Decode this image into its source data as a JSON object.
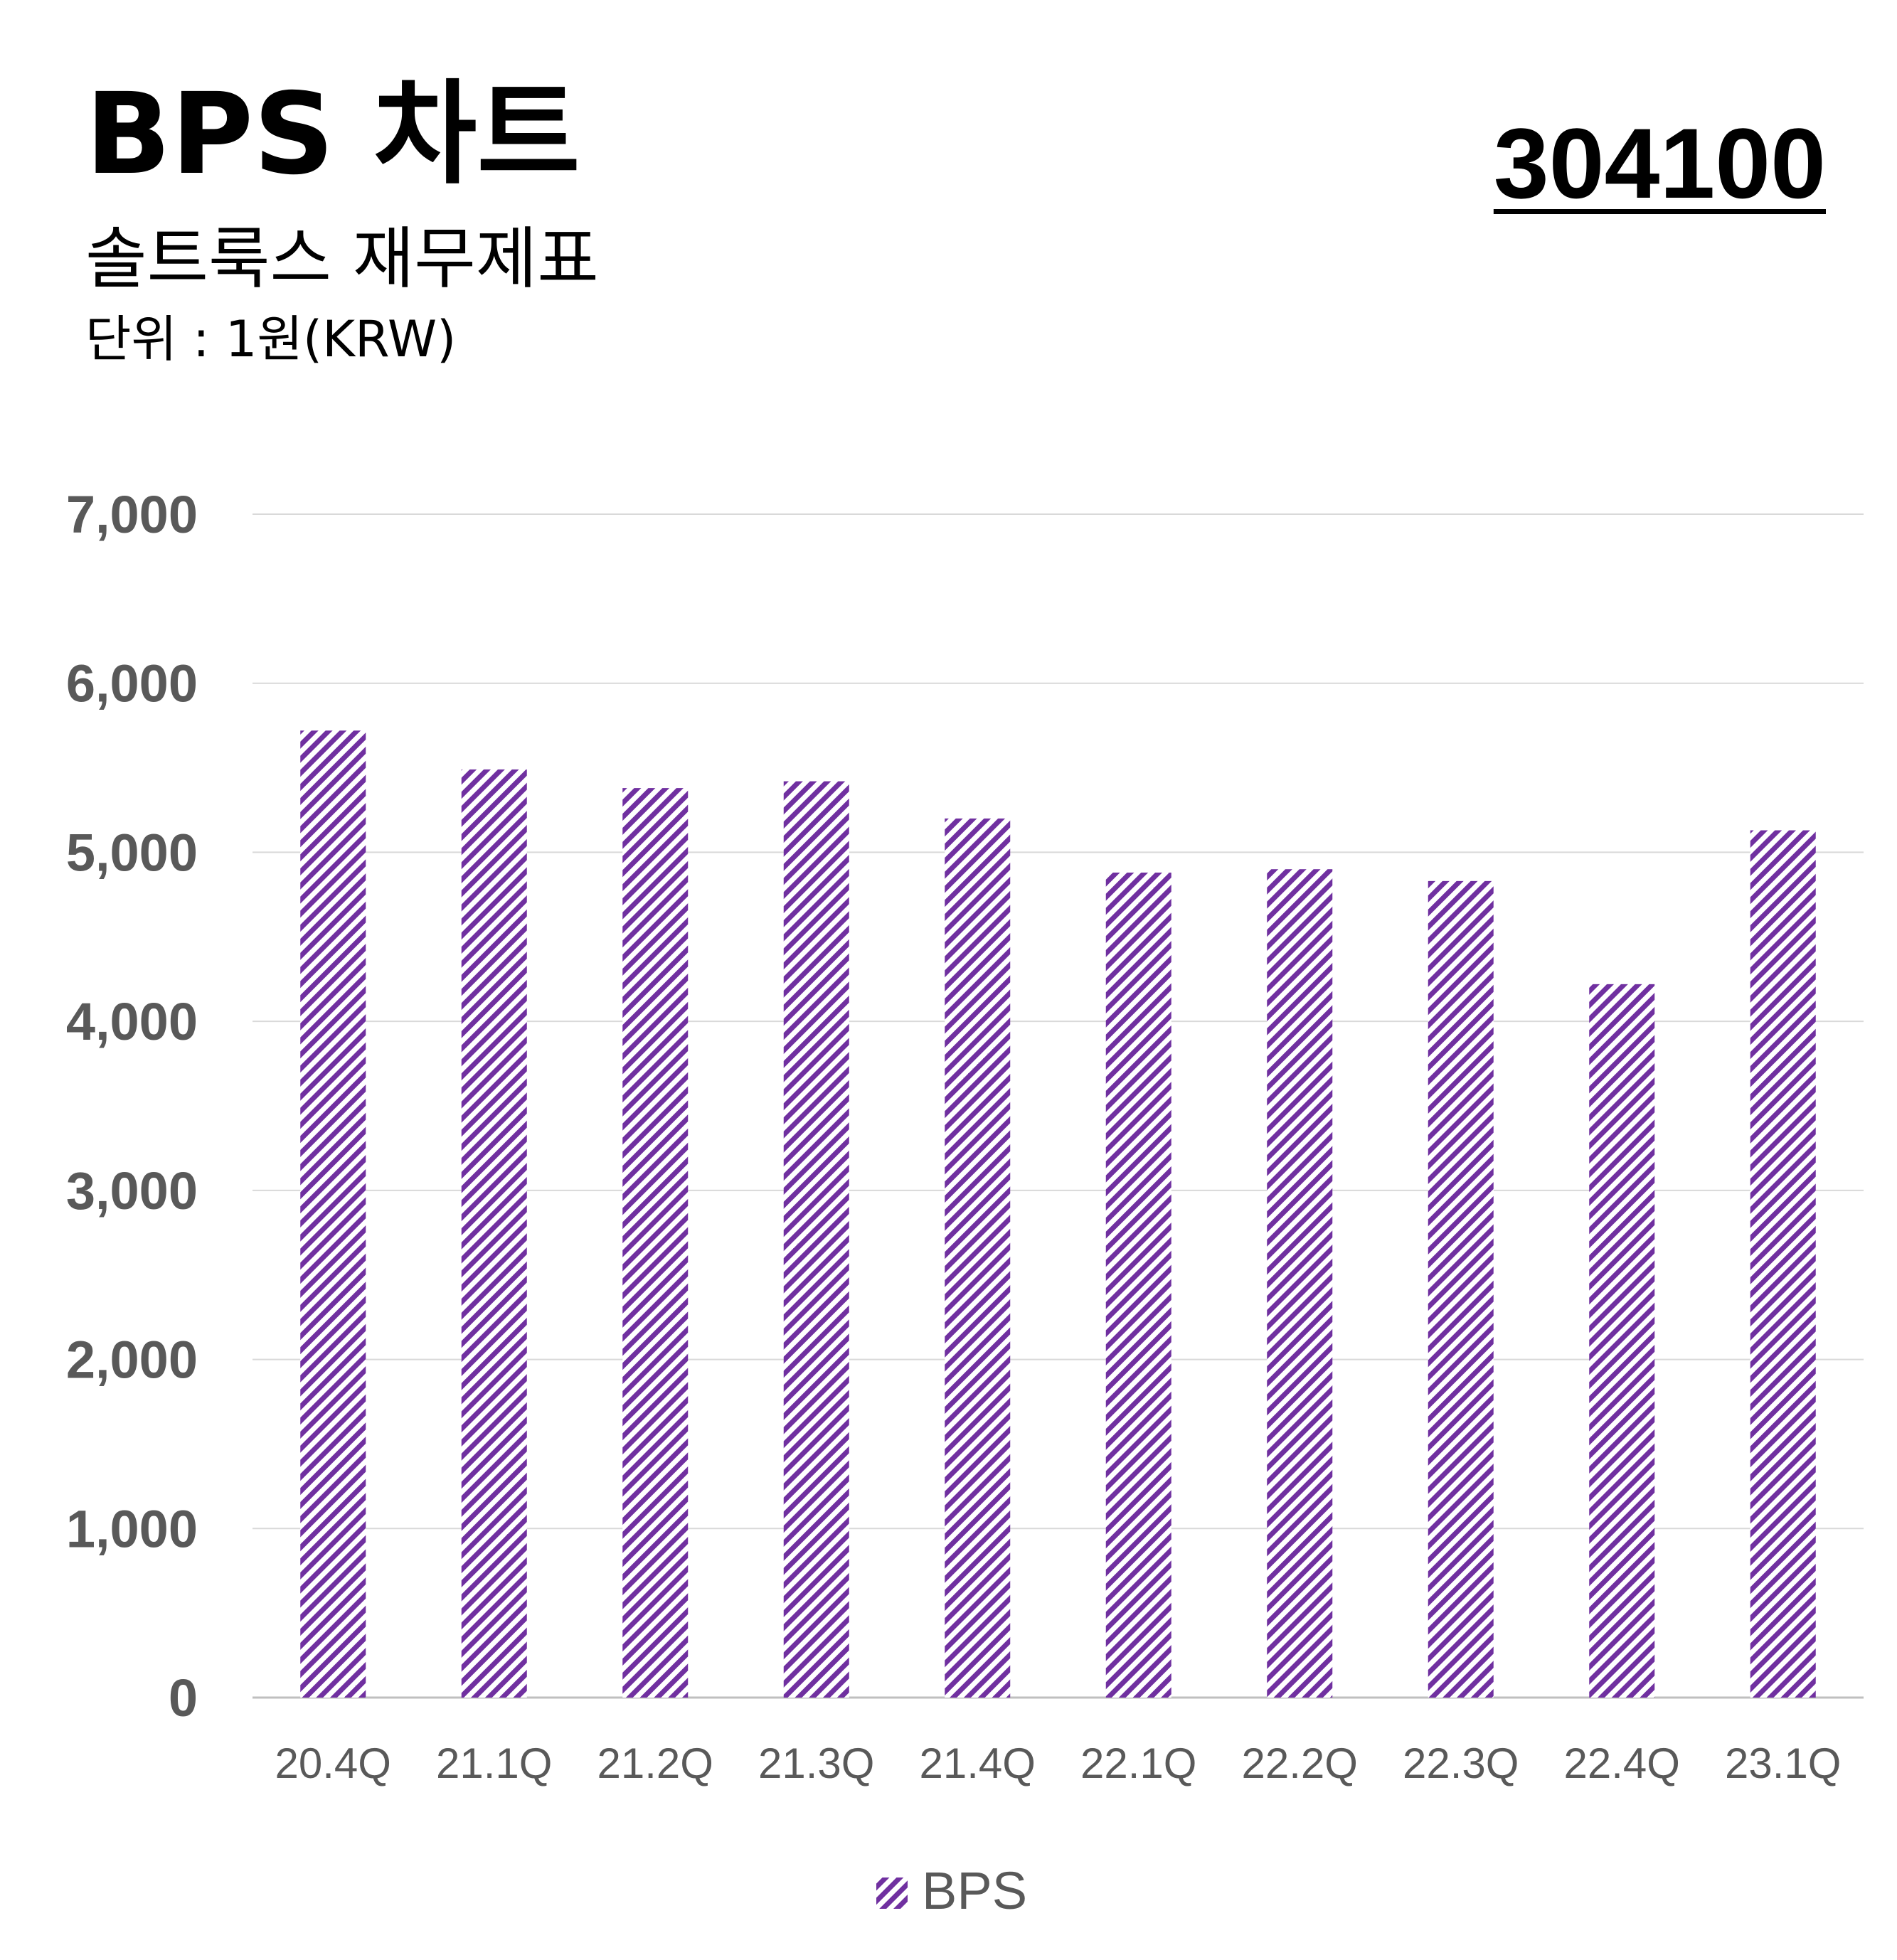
{
  "header": {
    "title": "BPS 차트",
    "subtitle": "솔트룩스 재무제표",
    "unit": "단위 : 1원(KRW)",
    "code": "304100"
  },
  "chart_data": {
    "type": "bar",
    "categories": [
      "20.4Q",
      "21.1Q",
      "21.2Q",
      "21.3Q",
      "21.4Q",
      "22.1Q",
      "22.2Q",
      "22.3Q",
      "22.4Q",
      "23.1Q"
    ],
    "series": [
      {
        "name": "BPS",
        "values": [
          5720,
          5490,
          5380,
          5420,
          5200,
          4880,
          4900,
          4830,
          4220,
          5130
        ]
      }
    ],
    "ylim": [
      0,
      7000
    ],
    "yticks": [
      0,
      1000,
      2000,
      3000,
      4000,
      5000,
      6000,
      7000
    ],
    "ytick_labels": [
      "0",
      "1,000",
      "2,000",
      "3,000",
      "4,000",
      "5,000",
      "6,000",
      "7,000"
    ],
    "grid": true,
    "legend_position": "bottom",
    "bar_pattern": "diagonal-hatch",
    "colors": {
      "bar": "#7030a0",
      "grid": "#d9d9d9",
      "axis_text": "#595959"
    }
  }
}
